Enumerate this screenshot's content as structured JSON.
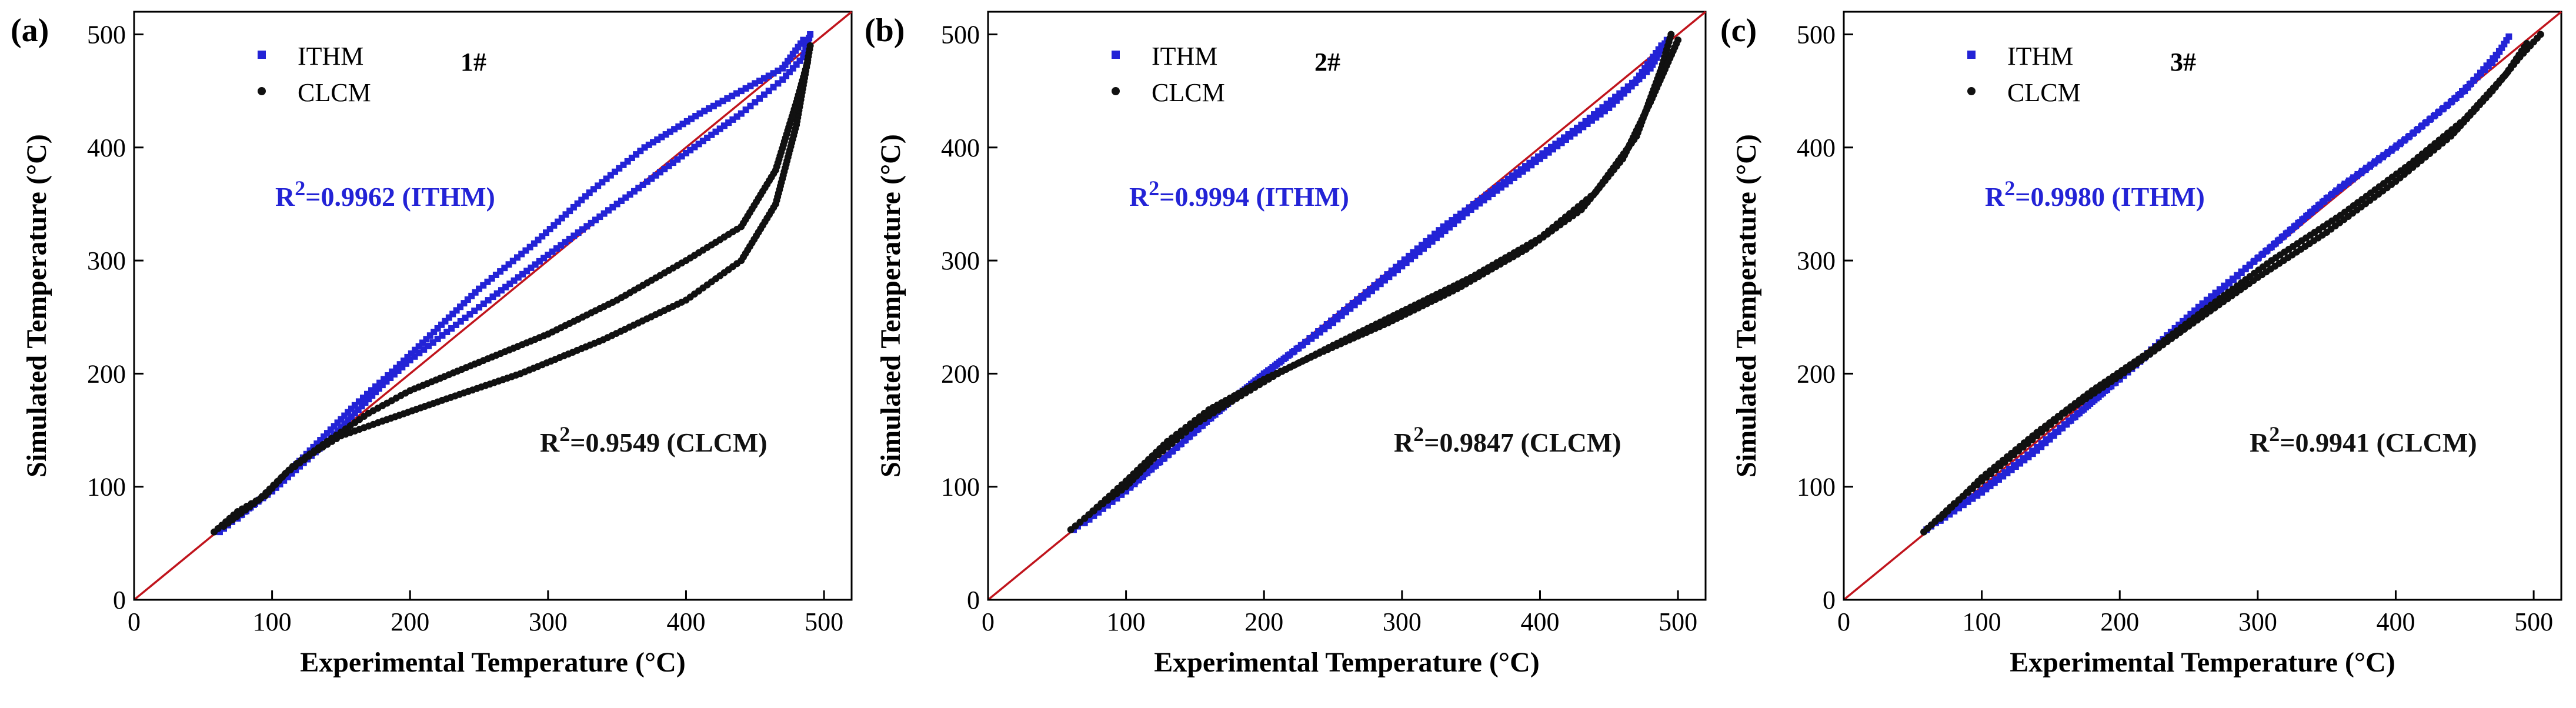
{
  "chart_data": [
    {
      "type": "scatter",
      "panel_label": "(a)",
      "sample": "1#",
      "xlabel": "Experimental Temperature (°C)",
      "ylabel": "Simulated Temperature (°C)",
      "xlim": [
        0,
        520
      ],
      "ylim": [
        0,
        520
      ],
      "xticks": [
        0,
        100,
        200,
        300,
        400,
        500
      ],
      "yticks": [
        0,
        100,
        200,
        300,
        400,
        500
      ],
      "reference_line": "y = x",
      "legend": [
        "ITHM",
        "CLCM"
      ],
      "r2_ithm_label": "R²=0.9962 (ITHM)",
      "r2_clcm_label": "R²=0.9549 (CLCM)",
      "series": [
        {
          "name": "ITHM",
          "color": "#2323d6",
          "marker": "square",
          "curves": [
            [
              [
                62,
                60
              ],
              [
                80,
                78
              ],
              [
                100,
                96
              ],
              [
                120,
                118
              ],
              [
                140,
                140
              ],
              [
                160,
                165
              ],
              [
                180,
                190
              ],
              [
                200,
                212
              ],
              [
                230,
                240
              ],
              [
                260,
                268
              ],
              [
                300,
                305
              ],
              [
                350,
                350
              ],
              [
                400,
                395
              ],
              [
                440,
                430
              ],
              [
                470,
                460
              ],
              [
                485,
                480
              ],
              [
                490,
                500
              ]
            ],
            [
              [
                75,
                72
              ],
              [
                100,
                98
              ],
              [
                130,
                135
              ],
              [
                160,
                172
              ],
              [
                190,
                205
              ],
              [
                220,
                240
              ],
              [
                250,
                275
              ],
              [
                290,
                315
              ],
              [
                330,
                360
              ],
              [
                370,
                400
              ],
              [
                410,
                430
              ],
              [
                440,
                450
              ],
              [
                470,
                470
              ],
              [
                485,
                495
              ]
            ]
          ]
        },
        {
          "name": "CLCM",
          "color": "#111111",
          "marker": "circle",
          "curves": [
            [
              [
                58,
                60
              ],
              [
                75,
                78
              ],
              [
                95,
                92
              ],
              [
                110,
                112
              ],
              [
                130,
                130
              ],
              [
                150,
                145
              ],
              [
                180,
                158
              ],
              [
                220,
                175
              ],
              [
                280,
                200
              ],
              [
                340,
                230
              ],
              [
                400,
                265
              ],
              [
                440,
                300
              ],
              [
                465,
                350
              ],
              [
                480,
                420
              ],
              [
                490,
                490
              ]
            ],
            [
              [
                65,
                65
              ],
              [
                90,
                88
              ],
              [
                115,
                118
              ],
              [
                140,
                140
              ],
              [
                170,
                165
              ],
              [
                200,
                185
              ],
              [
                250,
                210
              ],
              [
                300,
                235
              ],
              [
                350,
                265
              ],
              [
                400,
                300
              ],
              [
                440,
                330
              ],
              [
                465,
                380
              ],
              [
                480,
                440
              ],
              [
                488,
                475
              ]
            ]
          ]
        }
      ]
    },
    {
      "type": "scatter",
      "panel_label": "(b)",
      "sample": "2#",
      "xlabel": "Experimental Temperature (°C)",
      "ylabel": "Simulated Temperature (°C)",
      "xlim": [
        0,
        520
      ],
      "ylim": [
        0,
        520
      ],
      "xticks": [
        0,
        100,
        200,
        300,
        400,
        500
      ],
      "yticks": [
        0,
        100,
        200,
        300,
        400,
        500
      ],
      "reference_line": "y = x",
      "legend": [
        "ITHM",
        "CLCM"
      ],
      "r2_ithm_label": "R²=0.9994 (ITHM)",
      "r2_clcm_label": "R²=0.9847 (CLCM)",
      "series": [
        {
          "name": "ITHM",
          "color": "#2323d6",
          "marker": "square",
          "curves": [
            [
              [
                62,
                62
              ],
              [
                80,
                80
              ],
              [
                100,
                98
              ],
              [
                130,
                128
              ],
              [
                160,
                160
              ],
              [
                200,
                200
              ],
              [
                250,
                245
              ],
              [
                300,
                295
              ],
              [
                350,
                345
              ],
              [
                400,
                390
              ],
              [
                450,
                435
              ],
              [
                480,
                470
              ],
              [
                492,
                495
              ]
            ],
            [
              [
                70,
                68
              ],
              [
                100,
                96
              ],
              [
                140,
                138
              ],
              [
                180,
                180
              ],
              [
                230,
                228
              ],
              [
                280,
                278
              ],
              [
                330,
                330
              ],
              [
                380,
                375
              ],
              [
                430,
                420
              ],
              [
                470,
                460
              ],
              [
                488,
                490
              ]
            ]
          ]
        },
        {
          "name": "CLCM",
          "color": "#111111",
          "marker": "circle",
          "curves": [
            [
              [
                60,
                62
              ],
              [
                80,
                82
              ],
              [
                100,
                100
              ],
              [
                120,
                125
              ],
              [
                150,
                155
              ],
              [
                180,
                178
              ],
              [
                210,
                200
              ],
              [
                250,
                225
              ],
              [
                300,
                255
              ],
              [
                350,
                285
              ],
              [
                400,
                320
              ],
              [
                440,
                360
              ],
              [
                470,
                410
              ],
              [
                488,
                470
              ],
              [
                495,
                500
              ]
            ],
            [
              [
                70,
                72
              ],
              [
                100,
                105
              ],
              [
                130,
                140
              ],
              [
                160,
                168
              ],
              [
                200,
                195
              ],
              [
                240,
                218
              ],
              [
                290,
                245
              ],
              [
                340,
                275
              ],
              [
                390,
                310
              ],
              [
                430,
                345
              ],
              [
                460,
                390
              ],
              [
                480,
                440
              ],
              [
                500,
                495
              ]
            ]
          ]
        }
      ]
    },
    {
      "type": "scatter",
      "panel_label": "(c)",
      "sample": "3#",
      "xlabel": "Experimental Temperature (°C)",
      "ylabel": "Simulated Temperature (°C)",
      "xlim": [
        0,
        520
      ],
      "ylim": [
        0,
        520
      ],
      "xticks": [
        0,
        100,
        200,
        300,
        400,
        500
      ],
      "yticks": [
        0,
        100,
        200,
        300,
        400,
        500
      ],
      "reference_line": "y = x",
      "legend": [
        "ITHM",
        "CLCM"
      ],
      "r2_ithm_label": "R²=0.9980 (ITHM)",
      "r2_clcm_label": "R²=0.9941 (CLCM)",
      "series": [
        {
          "name": "ITHM",
          "color": "#2323d6",
          "marker": "square",
          "curves": [
            [
              [
                60,
                62
              ],
              [
                80,
                80
              ],
              [
                100,
                97
              ],
              [
                130,
                125
              ],
              [
                160,
                155
              ],
              [
                200,
                195
              ],
              [
                250,
                248
              ],
              [
                300,
                302
              ],
              [
                350,
                355
              ],
              [
                400,
                400
              ],
              [
                440,
                440
              ],
              [
                470,
                475
              ],
              [
                482,
                498
              ]
            ],
            [
              [
                70,
                70
              ],
              [
                100,
                95
              ],
              [
                140,
                132
              ],
              [
                180,
                175
              ],
              [
                220,
                218
              ],
              [
                260,
                262
              ],
              [
                310,
                312
              ],
              [
                360,
                365
              ],
              [
                410,
                410
              ],
              [
                450,
                450
              ],
              [
                475,
                485
              ]
            ]
          ]
        },
        {
          "name": "CLCM",
          "color": "#111111",
          "marker": "circle",
          "curves": [
            [
              [
                58,
                60
              ],
              [
                80,
                85
              ],
              [
                100,
                105
              ],
              [
                130,
                135
              ],
              [
                160,
                165
              ],
              [
                200,
                198
              ],
              [
                250,
                242
              ],
              [
                300,
                285
              ],
              [
                350,
                325
              ],
              [
                400,
                370
              ],
              [
                440,
                410
              ],
              [
                470,
                450
              ],
              [
                490,
                480
              ],
              [
                505,
                500
              ]
            ],
            [
              [
                70,
                72
              ],
              [
                100,
                108
              ],
              [
                140,
                148
              ],
              [
                180,
                185
              ],
              [
                220,
                218
              ],
              [
                260,
                255
              ],
              [
                310,
                300
              ],
              [
                360,
                340
              ],
              [
                410,
                385
              ],
              [
                450,
                425
              ],
              [
                480,
                465
              ],
              [
                495,
                492
              ]
            ]
          ]
        }
      ]
    }
  ]
}
